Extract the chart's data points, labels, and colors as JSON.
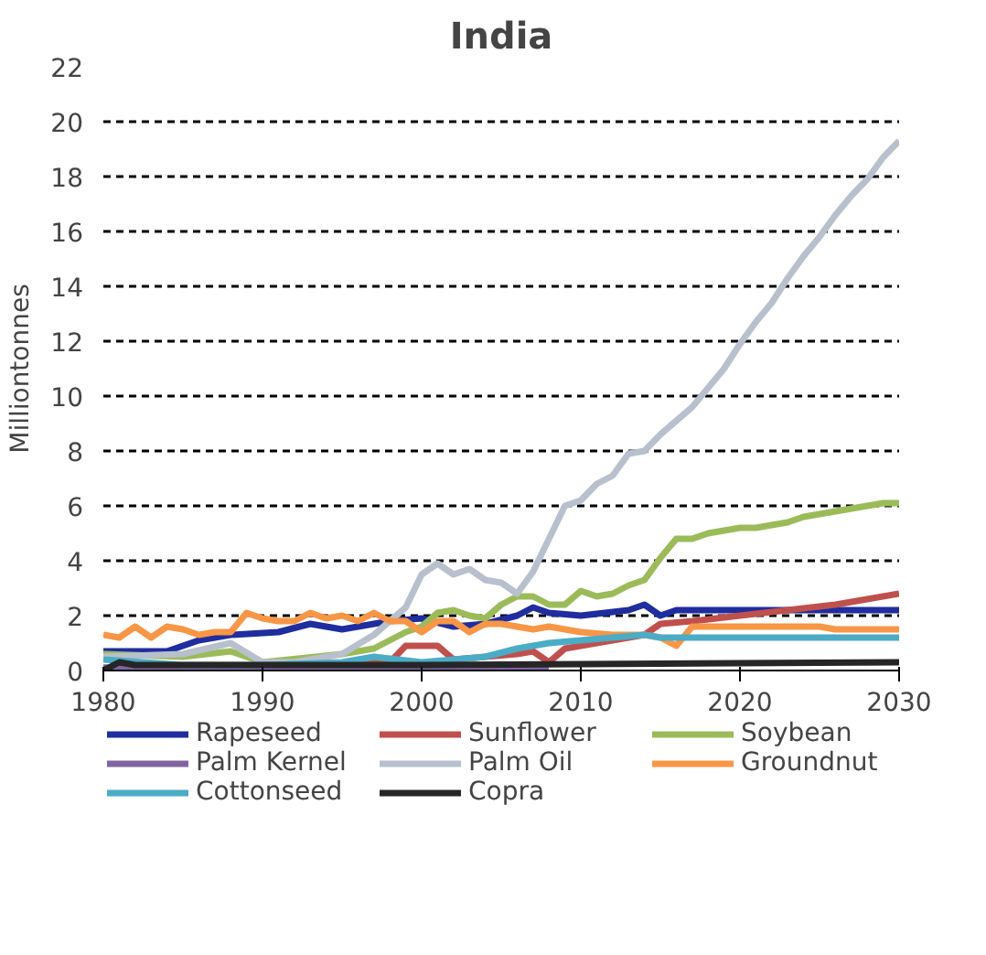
{
  "chart_data": {
    "type": "line",
    "title": "India",
    "ylabel": "Milliontonnes",
    "xlim": [
      1980,
      2030
    ],
    "xticks": [
      1980,
      1990,
      2000,
      2010,
      2020,
      2030
    ],
    "ylim": [
      0,
      22
    ],
    "yticks": [
      0,
      2,
      4,
      6,
      8,
      10,
      12,
      14,
      16,
      18,
      20,
      22
    ],
    "grid": "y",
    "legend": "bottom",
    "line_style": "solid",
    "marker": "none",
    "series": [
      {
        "name": "Rapeseed",
        "color": "#1f2d9e",
        "x": [
          1980,
          1984,
          1986,
          1988,
          1991,
          1993,
          1995,
          1998,
          2000,
          2002,
          2004,
          2006,
          2007,
          2008,
          2010,
          2013,
          2014,
          2015,
          2016,
          2020,
          2030
        ],
        "values": [
          0.7,
          0.7,
          1.1,
          1.3,
          1.4,
          1.7,
          1.5,
          1.8,
          1.9,
          1.6,
          1.7,
          2.0,
          2.3,
          2.1,
          2.0,
          2.2,
          2.4,
          2.0,
          2.2,
          2.2,
          2.2
        ]
      },
      {
        "name": "Sunflower",
        "color": "#c0504d",
        "x": [
          1980,
          1995,
          1996,
          1998,
          1999,
          2001,
          2002,
          2004,
          2006,
          2007,
          2008,
          2009,
          2010,
          2012,
          2014,
          2015,
          2017,
          2020,
          2023,
          2026,
          2030
        ],
        "values": [
          0.1,
          0.1,
          0.3,
          0.3,
          0.9,
          0.9,
          0.4,
          0.5,
          0.6,
          0.7,
          0.3,
          0.8,
          0.9,
          1.1,
          1.3,
          1.7,
          1.8,
          2.0,
          2.2,
          2.4,
          2.8
        ]
      },
      {
        "name": "Soybean",
        "color": "#9bbb59",
        "x": [
          1980,
          1985,
          1988,
          1990,
          1995,
          1997,
          1999,
          2000,
          2001,
          2002,
          2003,
          2004,
          2005,
          2006,
          2007,
          2008,
          2009,
          2010,
          2011,
          2012,
          2013,
          2014,
          2015,
          2016,
          2017,
          2018,
          2019,
          2020,
          2021,
          2022,
          2023,
          2024,
          2025,
          2026,
          2027,
          2028,
          2029,
          2030
        ],
        "values": [
          0.6,
          0.5,
          0.7,
          0.3,
          0.6,
          0.8,
          1.4,
          1.6,
          2.1,
          2.2,
          2.0,
          1.9,
          2.4,
          2.7,
          2.7,
          2.4,
          2.4,
          2.9,
          2.7,
          2.8,
          3.1,
          3.3,
          4.1,
          4.8,
          4.8,
          5.0,
          5.1,
          5.2,
          5.2,
          5.3,
          5.4,
          5.6,
          5.7,
          5.8,
          5.9,
          6.0,
          6.1,
          6.1
        ]
      },
      {
        "name": "Palm Kernel",
        "color": "#8064a2",
        "x": [
          1980,
          1990,
          2000,
          2008
        ],
        "values": [
          0.1,
          0.1,
          0.1,
          0.1
        ]
      },
      {
        "name": "Palm Oil",
        "color": "#b7c0cc",
        "x": [
          1980,
          1985,
          1988,
          1990,
          1992,
          1995,
          1997,
          1999,
          2000,
          2001,
          2002,
          2003,
          2004,
          2005,
          2006,
          2007,
          2008,
          2009,
          2010,
          2011,
          2012,
          2013,
          2014,
          2015,
          2016,
          2017,
          2018,
          2019,
          2020,
          2021,
          2022,
          2023,
          2024,
          2025,
          2026,
          2027,
          2028,
          2029,
          2030
        ],
        "values": [
          0.5,
          0.6,
          1.0,
          0.3,
          0.3,
          0.6,
          1.3,
          2.3,
          3.5,
          3.9,
          3.5,
          3.7,
          3.3,
          3.2,
          2.8,
          3.6,
          4.8,
          6.0,
          6.2,
          6.8,
          7.1,
          7.9,
          8.0,
          8.6,
          9.1,
          9.6,
          10.3,
          11.0,
          11.9,
          12.7,
          13.4,
          14.3,
          15.1,
          15.8,
          16.6,
          17.3,
          17.9,
          18.7,
          19.3
        ]
      },
      {
        "name": "Groundnut",
        "color": "#f79646",
        "x": [
          1980,
          1981,
          1982,
          1983,
          1984,
          1985,
          1986,
          1987,
          1988,
          1989,
          1990,
          1991,
          1992,
          1993,
          1994,
          1995,
          1996,
          1997,
          1998,
          1999,
          2000,
          2001,
          2002,
          2003,
          2004,
          2005,
          2006,
          2007,
          2008,
          2009,
          2010,
          2012,
          2014,
          2015,
          2016,
          2017,
          2020,
          2025,
          2026,
          2030
        ],
        "values": [
          1.3,
          1.2,
          1.6,
          1.2,
          1.6,
          1.5,
          1.3,
          1.4,
          1.4,
          2.1,
          1.9,
          1.8,
          1.8,
          2.1,
          1.9,
          2.0,
          1.8,
          2.1,
          1.8,
          1.8,
          1.4,
          1.8,
          1.8,
          1.4,
          1.7,
          1.7,
          1.6,
          1.5,
          1.6,
          1.5,
          1.4,
          1.3,
          1.3,
          1.2,
          0.9,
          1.6,
          1.6,
          1.6,
          1.5,
          1.5
        ]
      },
      {
        "name": "Cottonseed",
        "color": "#4bacc6",
        "x": [
          1980,
          1985,
          1990,
          1995,
          1997,
          2000,
          2004,
          2006,
          2008,
          2010,
          2014,
          2015,
          2030
        ],
        "values": [
          0.4,
          0.2,
          0.2,
          0.3,
          0.5,
          0.3,
          0.5,
          0.8,
          1.0,
          1.1,
          1.3,
          1.2,
          1.2
        ]
      },
      {
        "name": "Copra",
        "color": "#262626",
        "x": [
          1980,
          1981,
          1982,
          2000,
          2030
        ],
        "values": [
          0.0,
          0.3,
          0.2,
          0.2,
          0.3
        ]
      }
    ]
  }
}
